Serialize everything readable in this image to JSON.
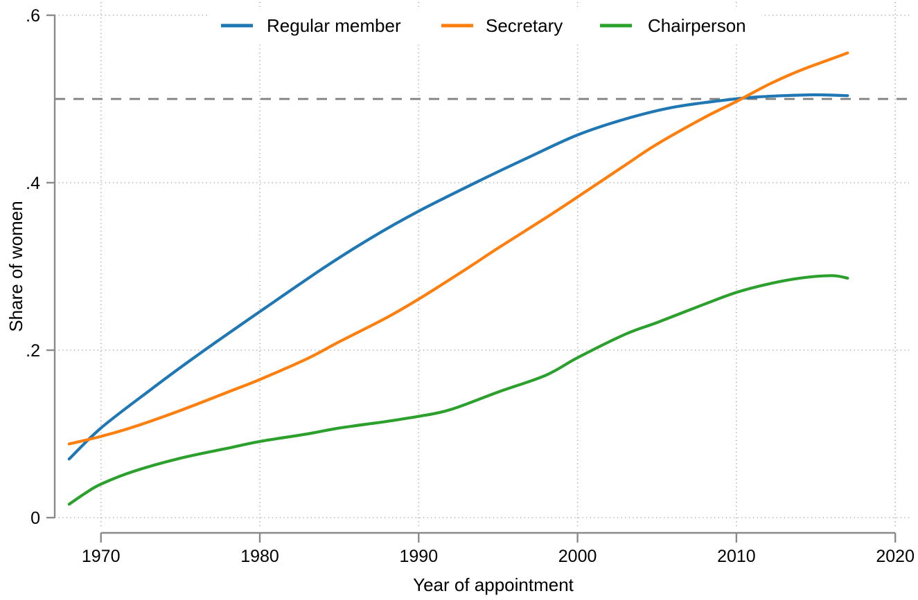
{
  "figure": {
    "xlabel": "Year of appointment",
    "ylabel": "Share of women"
  },
  "colors": {
    "axis_gray": "#8a8a8a",
    "grid_gray": "#a8a8a8",
    "reference_gray": "#7f7f7f",
    "background": "#ffffff",
    "regular_member": "#1f77b4",
    "secretary": "#ff7f0e",
    "chairperson": "#2ca02c"
  },
  "chart_data": {
    "type": "line",
    "title": "",
    "xlabel": "Year of appointment",
    "ylabel": "Share of women",
    "xlim": [
      1967,
      2021
    ],
    "ylim": [
      0,
      0.6
    ],
    "grid": true,
    "legend_position": "top-horizontal",
    "x_ticks": [
      {
        "v": 1970,
        "label": "1970"
      },
      {
        "v": 1980,
        "label": "1980"
      },
      {
        "v": 1990,
        "label": "1990"
      },
      {
        "v": 2000,
        "label": "2000"
      },
      {
        "v": 2010,
        "label": "2010"
      },
      {
        "v": 2020,
        "label": "2020"
      }
    ],
    "y_ticks": [
      {
        "v": 0.0,
        "label": "0"
      },
      {
        "v": 0.2,
        "label": ".2"
      },
      {
        "v": 0.4,
        "label": ".4"
      },
      {
        "v": 0.6,
        "label": ".6"
      }
    ],
    "reference_line_y": 0.5,
    "series": [
      {
        "name": "Regular member",
        "color": "#1f77b4",
        "points": [
          [
            1968,
            0.07
          ],
          [
            1970,
            0.107
          ],
          [
            1973,
            0.151
          ],
          [
            1976,
            0.193
          ],
          [
            1980,
            0.246
          ],
          [
            1984,
            0.298
          ],
          [
            1987,
            0.334
          ],
          [
            1990,
            0.366
          ],
          [
            1994,
            0.404
          ],
          [
            1997,
            0.431
          ],
          [
            2000,
            0.457
          ],
          [
            2003,
            0.476
          ],
          [
            2006,
            0.49
          ],
          [
            2009,
            0.498
          ],
          [
            2011,
            0.502
          ],
          [
            2013,
            0.504
          ],
          [
            2015,
            0.505
          ],
          [
            2017,
            0.504
          ]
        ]
      },
      {
        "name": "Secretary",
        "color": "#ff7f0e",
        "points": [
          [
            1968,
            0.088
          ],
          [
            1970,
            0.097
          ],
          [
            1972,
            0.108
          ],
          [
            1975,
            0.128
          ],
          [
            1978,
            0.15
          ],
          [
            1980,
            0.165
          ],
          [
            1983,
            0.19
          ],
          [
            1985,
            0.21
          ],
          [
            1988,
            0.239
          ],
          [
            1990,
            0.261
          ],
          [
            1993,
            0.297
          ],
          [
            1995,
            0.322
          ],
          [
            1998,
            0.358
          ],
          [
            2000,
            0.383
          ],
          [
            2003,
            0.421
          ],
          [
            2005,
            0.446
          ],
          [
            2008,
            0.478
          ],
          [
            2010,
            0.497
          ],
          [
            2012,
            0.517
          ],
          [
            2014,
            0.534
          ],
          [
            2016,
            0.548
          ],
          [
            2017,
            0.555
          ]
        ]
      },
      {
        "name": "Chairperson",
        "color": "#2ca02c",
        "points": [
          [
            1968,
            0.016
          ],
          [
            1969,
            0.029
          ],
          [
            1970,
            0.04
          ],
          [
            1972,
            0.055
          ],
          [
            1975,
            0.071
          ],
          [
            1978,
            0.083
          ],
          [
            1980,
            0.091
          ],
          [
            1983,
            0.1
          ],
          [
            1985,
            0.107
          ],
          [
            1988,
            0.115
          ],
          [
            1990,
            0.121
          ],
          [
            1992,
            0.129
          ],
          [
            1995,
            0.15
          ],
          [
            1998,
            0.17
          ],
          [
            2000,
            0.191
          ],
          [
            2003,
            0.219
          ],
          [
            2005,
            0.233
          ],
          [
            2008,
            0.255
          ],
          [
            2010,
            0.269
          ],
          [
            2012,
            0.279
          ],
          [
            2014,
            0.286
          ],
          [
            2016,
            0.289
          ],
          [
            2017,
            0.286
          ]
        ]
      }
    ]
  }
}
